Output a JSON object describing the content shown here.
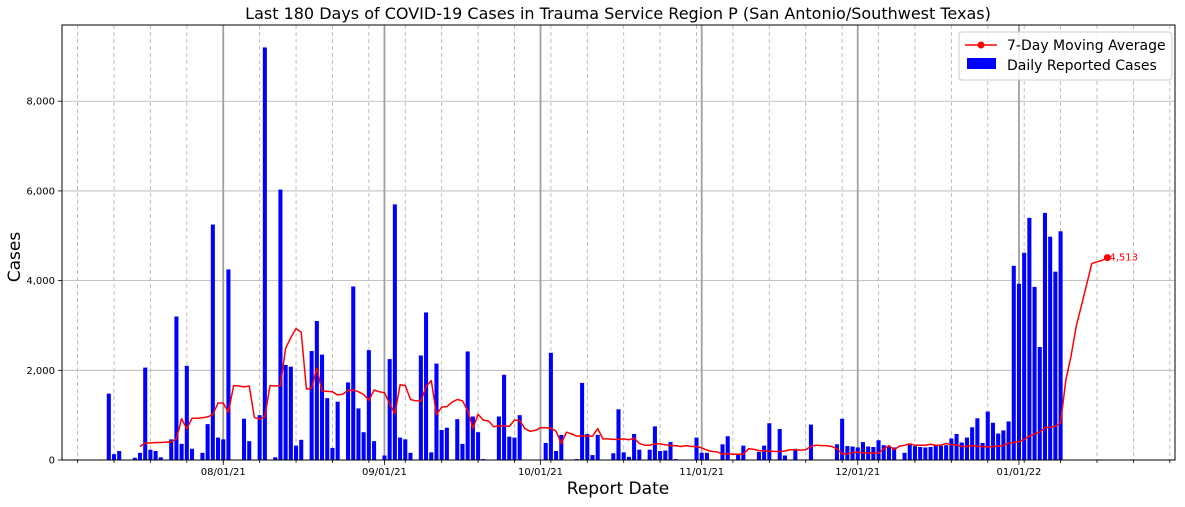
{
  "chart_data": {
    "type": "bar",
    "title": "Last 180 Days of COVID-19 Cases in Trauma Service Region P (San Antonio/Southwest Texas)",
    "xlabel": "Report Date",
    "ylabel": "Cases",
    "ylim": [
      0,
      9700
    ],
    "yticks": [
      0,
      2000,
      4000,
      6000,
      8000
    ],
    "ytick_labels": [
      "0",
      "2,000",
      "4,000",
      "6,000",
      "8,000"
    ],
    "xticks": [
      "2021-08-01",
      "2021-09-01",
      "2021-10-01",
      "2021-11-01",
      "2021-12-01",
      "2022-01-01"
    ],
    "xtick_labels": [
      "08/01/21",
      "09/01/21",
      "10/01/21",
      "11/01/21",
      "12/01/21",
      "01/01/22"
    ],
    "grid": true,
    "legend_position": "top-right",
    "annotation": "4,513",
    "colors": {
      "bars": "#0000ff",
      "line": "#ff0000"
    },
    "series": [
      {
        "name": "Daily Reported Cases",
        "type": "bar",
        "start_date": "2021-07-10",
        "values": [
          1480,
          130,
          200,
          0,
          0,
          50,
          160,
          2060,
          230,
          200,
          60,
          0,
          460,
          3200,
          360,
          2100,
          250,
          0,
          160,
          800,
          5250,
          500,
          460,
          4250,
          0,
          0,
          920,
          420,
          0,
          1000,
          9200,
          0,
          60,
          6030,
          2120,
          2080,
          320,
          450,
          0,
          2430,
          3100,
          2350,
          1380,
          270,
          1300,
          0,
          1730,
          3870,
          1150,
          620,
          2450,
          420,
          0,
          100,
          2250,
          5700,
          500,
          460,
          160,
          0,
          2330,
          3290,
          170,
          2150,
          670,
          720,
          0,
          910,
          360,
          2420,
          970,
          620,
          20,
          0,
          0,
          970,
          1900,
          520,
          500,
          1000,
          10,
          0,
          0,
          0,
          380,
          2390,
          200,
          560,
          0,
          0,
          20,
          1720,
          580,
          110,
          560,
          0,
          0,
          150,
          1130,
          170,
          70,
          580,
          230,
          0,
          230,
          750,
          200,
          210,
          400,
          20,
          0,
          0,
          0,
          500,
          160,
          160,
          0,
          0,
          350,
          530,
          0,
          140,
          320,
          0,
          0,
          180,
          320,
          820,
          0,
          690,
          100,
          0,
          250,
          0,
          0,
          790,
          0,
          0,
          0,
          0,
          350,
          920,
          310,
          300,
          280,
          400,
          300,
          290,
          440,
          330,
          310,
          280,
          0,
          160,
          340,
          310,
          290,
          280,
          290,
          330,
          320,
          330,
          480,
          580,
          390,
          500,
          730,
          930,
          380,
          1080,
          830,
          590,
          660,
          860,
          4330,
          3930,
          4620,
          5400,
          3860,
          2520,
          5510,
          4980,
          4200,
          5100
        ]
      },
      {
        "name": "7-Day Moving Average",
        "type": "line",
        "start_date": "2021-07-16",
        "values": [
          300,
          380,
          380,
          390,
          390,
          400,
          400,
          470,
          920,
          700,
          930,
          930,
          940,
          960,
          1010,
          1270,
          1270,
          1060,
          1660,
          1650,
          1630,
          1650,
          950,
          910,
          960,
          1660,
          1650,
          1660,
          2490,
          2730,
          2930,
          2850,
          1580,
          1600,
          2050,
          1540,
          1530,
          1520,
          1450,
          1470,
          1550,
          1560,
          1520,
          1460,
          1330,
          1560,
          1520,
          1500,
          1250,
          1030,
          1680,
          1660,
          1350,
          1320,
          1310,
          1640,
          1770,
          1010,
          1180,
          1190,
          1290,
          1350,
          1320,
          1100,
          710,
          1020,
          890,
          870,
          740,
          760,
          760,
          750,
          890,
          880,
          700,
          640,
          660,
          720,
          720,
          710,
          640,
          370,
          620,
          580,
          530,
          540,
          530,
          530,
          700,
          470,
          470,
          460,
          460,
          470,
          450,
          490,
          370,
          330,
          330,
          360,
          360,
          340,
          320,
          320,
          300,
          320,
          300,
          300,
          270,
          220,
          190,
          180,
          130,
          140,
          130,
          130,
          130,
          250,
          240,
          210,
          200,
          200,
          190,
          190,
          200,
          230,
          230,
          220,
          230,
          300,
          330,
          320,
          320,
          300,
          250,
          140,
          130,
          170,
          170,
          160,
          160,
          150,
          150,
          250,
          320,
          230,
          310,
          330,
          360,
          330,
          330,
          330,
          350,
          330,
          330,
          370,
          340,
          340,
          300,
          300,
          320,
          300,
          300,
          290,
          300,
          310,
          320,
          380,
          390,
          410,
          460,
          530,
          580,
          620,
          720,
          730,
          750,
          830,
          1780,
          2310,
          2980,
          3440,
          3910,
          4380,
          4420,
          4450,
          4513
        ]
      }
    ]
  }
}
